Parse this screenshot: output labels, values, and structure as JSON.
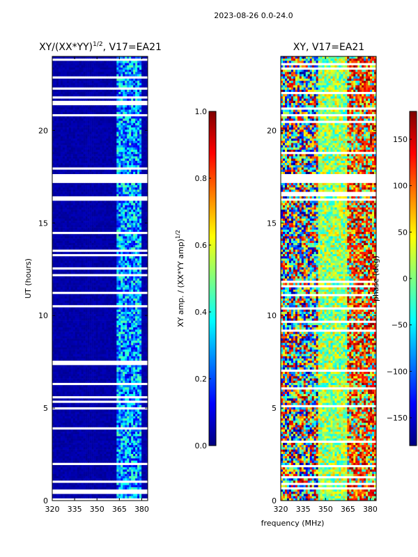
{
  "figure_title": "2023-08-26 0.0-24.0",
  "colors": {
    "jet": [
      "#00007f",
      "#0000ff",
      "#007fff",
      "#00ffff",
      "#7fff7f",
      "#ffff00",
      "#ff7f00",
      "#ff0000",
      "#7f0000"
    ],
    "background_blue": "#00008f"
  },
  "chart_data": [
    {
      "type": "heatmap",
      "title": "XY/(XX*YY)^(1/2), V17=EA21",
      "title_main": "XY/(XX*YY)",
      "title_exp": "1/2",
      "title_suffix": ", V17=EA21",
      "xlabel": "frequency (MHz)",
      "ylabel": "UT (hours)",
      "xlim": [
        320,
        384
      ],
      "ylim": [
        0,
        24
      ],
      "xticks": [
        320,
        335,
        350,
        365,
        380
      ],
      "yticks": [
        0,
        5,
        10,
        15,
        20
      ],
      "colorbar": {
        "label": "XY amp. / (XX*YY amp)^(1/2)",
        "label_main": "XY amp. / (XX*YY amp)",
        "label_exp": "1/2",
        "range": [
          0.0,
          1.0
        ],
        "ticks": [
          "0.0",
          "0.2",
          "0.4",
          "0.6",
          "0.8",
          "1.0"
        ]
      },
      "features": {
        "data_gap_hours": [
          17.1,
          17.6
        ],
        "bright_band_mhz": [
          363,
          380
        ],
        "notes": "mostly low amplitude (~0.05) except elevated 0.2-0.5 values between ~363-380 MHz"
      }
    },
    {
      "type": "heatmap",
      "title": "XY, V17=EA21",
      "xlabel": "frequency (MHz)",
      "ylabel": "",
      "xlim": [
        320,
        384
      ],
      "ylim": [
        0,
        24
      ],
      "xticks": [
        320,
        335,
        350,
        365,
        380
      ],
      "yticks": [
        0,
        5,
        10,
        15,
        20
      ],
      "colorbar": {
        "label": "phase (deg)",
        "range": [
          -180,
          180
        ],
        "ticks": [
          "150",
          "100",
          "50",
          "0",
          "−50",
          "−100",
          "−150"
        ]
      },
      "features": {
        "data_gap_hours": [
          17.1,
          17.6
        ],
        "notes": "noisy phase, random between ~320-345 MHz, banded orange/red structure above ~365 MHz"
      }
    }
  ]
}
